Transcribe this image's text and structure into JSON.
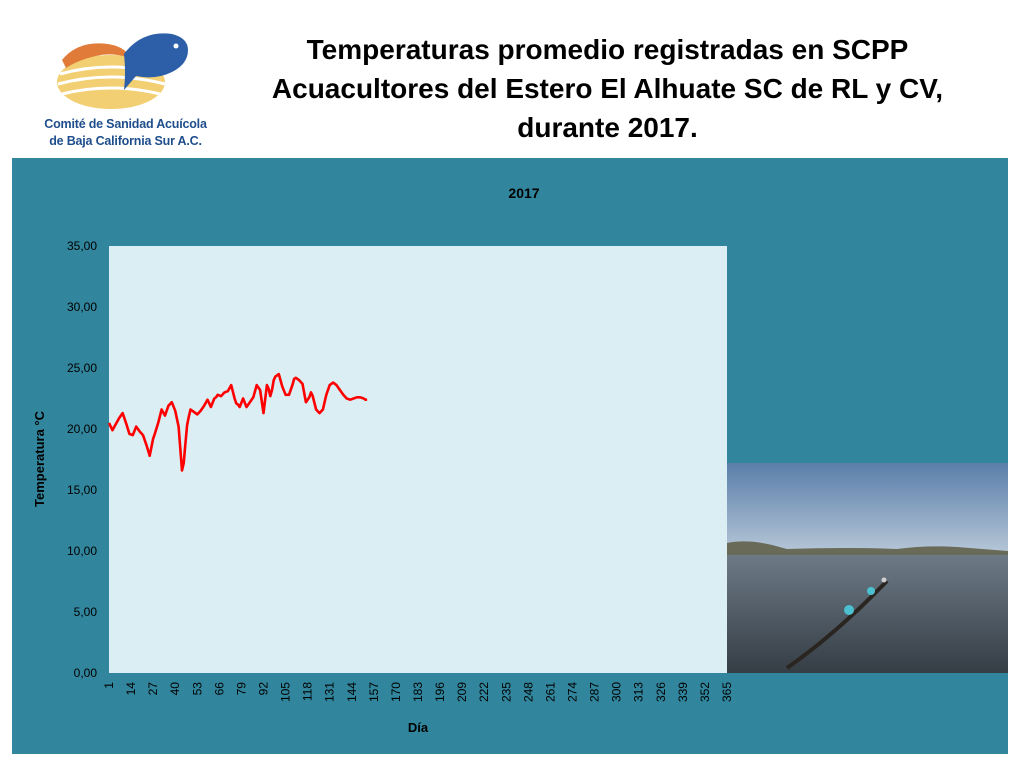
{
  "logo": {
    "line1": "Comité de Sanidad Acuícola",
    "line2": "de Baja California Sur A.C."
  },
  "slide_title": {
    "line1": "Temperaturas promedio registradas en SCPP",
    "line2": "Acuacultores del Estero El Alhuate SC de RL y CV,",
    "line3": "durante 2017."
  },
  "colors": {
    "panel": "#31859c",
    "plot_area": "#dbeef3",
    "series": "#ff0000"
  },
  "chart_data": {
    "type": "line",
    "title": "2017",
    "xlabel": "Día",
    "ylabel": "Temperatura °C",
    "xlim": [
      1,
      365
    ],
    "ylim": [
      0,
      35
    ],
    "ytick_labels": [
      "0,00",
      "5,00",
      "10,00",
      "15,00",
      "20,00",
      "25,00",
      "30,00",
      "35,00"
    ],
    "xtick_labels": [
      "1",
      "14",
      "27",
      "40",
      "53",
      "66",
      "79",
      "92",
      "105",
      "118",
      "131",
      "144",
      "157",
      "170",
      "183",
      "196",
      "209",
      "222",
      "235",
      "248",
      "261",
      "274",
      "287",
      "300",
      "313",
      "326",
      "339",
      "352",
      "365"
    ],
    "grid": false,
    "legend": "none",
    "series": [
      {
        "x": [
          1,
          3,
          5,
          7,
          9,
          11,
          13,
          15,
          17,
          19,
          21,
          23,
          25,
          27,
          28,
          30,
          32,
          34,
          36,
          38,
          40,
          42,
          44,
          45,
          46,
          47,
          48,
          49,
          51,
          53,
          55,
          57,
          59,
          61,
          63,
          64,
          65,
          67,
          69,
          71,
          73,
          75,
          76,
          77,
          78,
          80,
          82,
          84,
          86,
          88,
          90,
          92,
          94,
          95,
          96,
          97,
          98,
          99,
          101,
          103,
          105,
          107,
          109,
          110,
          111,
          113,
          115,
          117,
          119,
          120,
          121,
          123,
          125,
          127,
          129,
          131,
          133,
          135,
          137,
          139,
          141,
          143,
          145,
          147,
          149,
          151,
          152,
          153
        ],
        "y": [
          20.5,
          19.9,
          20.4,
          20.9,
          21.3,
          20.5,
          19.6,
          19.5,
          20.2,
          19.8,
          19.5,
          18.7,
          17.8,
          19.2,
          19.6,
          20.5,
          21.6,
          21.1,
          21.9,
          22.2,
          21.5,
          20.2,
          16.6,
          17.2,
          18.8,
          20.3,
          21.0,
          21.6,
          21.4,
          21.2,
          21.5,
          21.9,
          22.4,
          21.8,
          22.5,
          22.6,
          22.8,
          22.7,
          23.0,
          23.1,
          23.6,
          22.5,
          22.1,
          22.0,
          21.8,
          22.5,
          21.8,
          22.2,
          22.6,
          23.6,
          23.2,
          21.3,
          23.6,
          23.3,
          22.7,
          23.2,
          24.0,
          24.3,
          24.5,
          23.5,
          22.8,
          22.8,
          23.6,
          24.1,
          24.2,
          24.0,
          23.7,
          22.2,
          22.6,
          23.0,
          22.7,
          21.6,
          21.3,
          21.6,
          22.8,
          23.6,
          23.8,
          23.6,
          23.2,
          22.8,
          22.5,
          22.4,
          22.5,
          22.6,
          22.6,
          22.5,
          22.4,
          22.4
        ]
      }
    ]
  }
}
